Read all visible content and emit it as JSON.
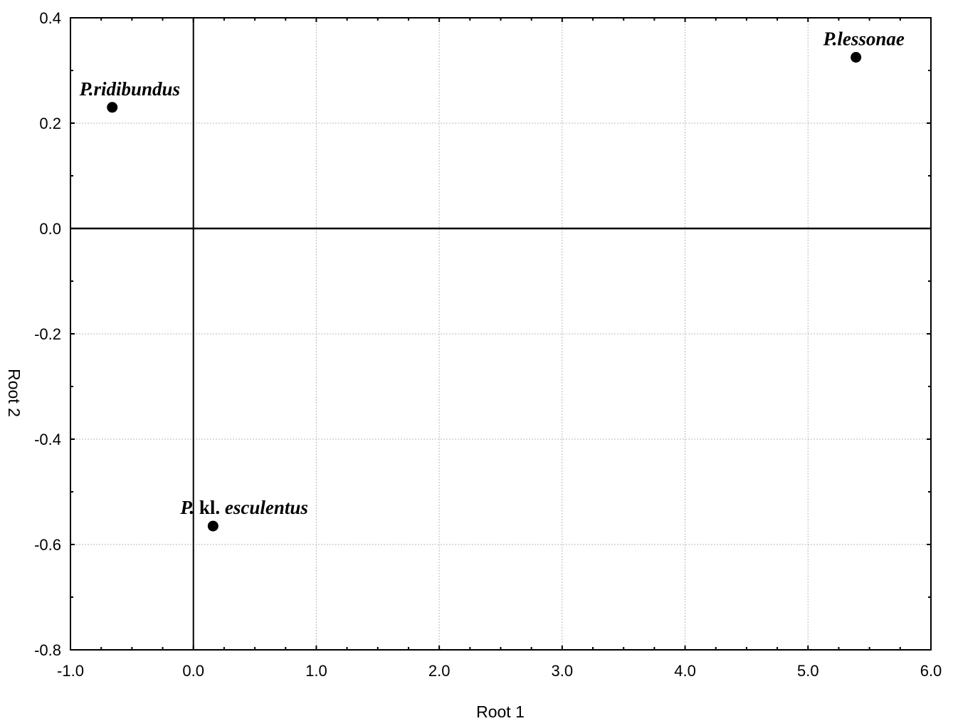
{
  "chart_data": {
    "type": "scatter",
    "title": "",
    "xlabel": "Root 1",
    "ylabel": "Root 2",
    "xlim": [
      -1.0,
      6.0
    ],
    "ylim": [
      -0.8,
      0.4
    ],
    "xticks": [
      -1.0,
      0.0,
      1.0,
      2.0,
      3.0,
      4.0,
      5.0,
      6.0
    ],
    "yticks": [
      -0.8,
      -0.6,
      -0.4,
      -0.2,
      0.0,
      0.2,
      0.4
    ],
    "xtick_labels": [
      "-1.0",
      "0.0",
      "1.0",
      "2.0",
      "3.0",
      "4.0",
      "5.0",
      "6.0"
    ],
    "ytick_labels": [
      "-0.8",
      "-0.6",
      "-0.4",
      "-0.2",
      "0.0",
      "0.2",
      "0.4"
    ],
    "grid": true,
    "zero_lines": true,
    "marker_color": "#000000",
    "points": [
      {
        "x": -0.66,
        "y": 0.23,
        "label_parts": [
          {
            "text": "P.ridibundus",
            "italic": true
          }
        ]
      },
      {
        "x": 5.39,
        "y": 0.325,
        "label_parts": [
          {
            "text": "P.lessonae",
            "italic": true
          }
        ]
      },
      {
        "x": 0.16,
        "y": -0.565,
        "label_parts": [
          {
            "text": "P.",
            "italic": true
          },
          {
            "text": " kl. ",
            "italic": false
          },
          {
            "text": "esculentus",
            "italic": true
          }
        ]
      }
    ]
  }
}
